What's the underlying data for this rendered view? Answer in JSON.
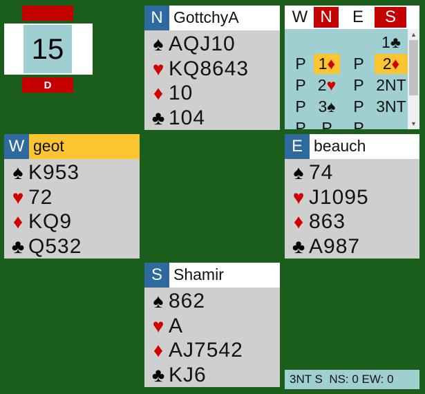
{
  "board": {
    "number": 15,
    "dealer": "D"
  },
  "hands": [
    {
      "seat": "N",
      "player": "GottchyA",
      "suits": [
        {
          "symbol": "♠",
          "cards": "AQJ10"
        },
        {
          "symbol": "♥",
          "cards": "KQ8643"
        },
        {
          "symbol": "♦",
          "cards": "10"
        },
        {
          "symbol": "♣",
          "cards": "104"
        }
      ]
    },
    {
      "seat": "W",
      "player": "geot",
      "suits": [
        {
          "symbol": "♠",
          "cards": "K953"
        },
        {
          "symbol": "♥",
          "cards": "72"
        },
        {
          "symbol": "♦",
          "cards": "KQ9"
        },
        {
          "symbol": "♣",
          "cards": "Q532"
        }
      ]
    },
    {
      "seat": "E",
      "player": "beauch",
      "suits": [
        {
          "symbol": "♠",
          "cards": "74"
        },
        {
          "symbol": "♥",
          "cards": "J1095"
        },
        {
          "symbol": "♦",
          "cards": "863"
        },
        {
          "symbol": "♣",
          "cards": "A987"
        }
      ]
    },
    {
      "seat": "S",
      "player": "Shamir",
      "suits": [
        {
          "symbol": "♠",
          "cards": "862"
        },
        {
          "symbol": "♥",
          "cards": "A"
        },
        {
          "symbol": "♦",
          "cards": "AJ7542"
        },
        {
          "symbol": "♣",
          "cards": "KJ6"
        }
      ]
    }
  ],
  "auction": {
    "header": [
      "W",
      "N",
      "E",
      "S"
    ],
    "rows": [
      [
        null,
        null,
        null,
        "1♣"
      ],
      [
        "P",
        "1♦",
        "P",
        "2♦"
      ],
      [
        "P",
        "2♥",
        "P",
        "2NT"
      ],
      [
        "P",
        "3♠",
        "P",
        "3NT"
      ],
      [
        "P",
        "P",
        "P",
        null
      ]
    ]
  },
  "result": "3NT S  NS: 0 EW: 0"
}
